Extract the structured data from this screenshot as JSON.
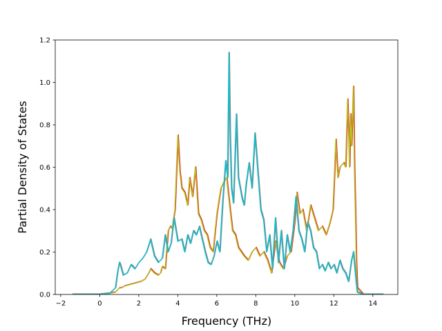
{
  "chart_data": {
    "type": "line",
    "title": "",
    "xlabel": "Frequency (THz)",
    "ylabel": "Partial Density of States",
    "xlim": [
      -2.28,
      15.28
    ],
    "ylim": [
      0.0,
      1.2
    ],
    "xticks": [
      -2,
      0,
      2,
      4,
      6,
      8,
      10,
      12,
      14
    ],
    "yticks": [
      0.0,
      0.2,
      0.4,
      0.6,
      0.8,
      1.0,
      1.2
    ],
    "xtick_labels": [
      "−2",
      "0",
      "2",
      "4",
      "6",
      "8",
      "10",
      "12",
      "14"
    ],
    "ytick_labels": [
      "0.0",
      "0.2",
      "0.4",
      "0.6",
      "0.8",
      "1.0",
      "1.2"
    ],
    "grid": false,
    "legend": "none",
    "colors": {
      "series_a_under": "#d62728",
      "series_a": "#bcbd22",
      "series_b_under": "#7f7f7f",
      "series_b": "#17becf"
    },
    "series": [
      {
        "x": [
          -1.4,
          0.0,
          0.5,
          0.8,
          0.9,
          1.0,
          1.1,
          1.3,
          1.5,
          1.7,
          1.9,
          2.1,
          2.3,
          2.5,
          2.6,
          2.8,
          3.0,
          3.1,
          3.2,
          3.35,
          3.5,
          3.6,
          3.7,
          3.85,
          4.0,
          4.1,
          4.2,
          4.35,
          4.5,
          4.6,
          4.75,
          4.9,
          5.05,
          5.2,
          5.35,
          5.5,
          5.65,
          5.8,
          6.0,
          6.2,
          6.35,
          6.5,
          6.65,
          6.8,
          6.95,
          7.1,
          7.25,
          7.4,
          7.6,
          7.8,
          8.0,
          8.2,
          8.4,
          8.6,
          8.8,
          9.0,
          9.2,
          9.4,
          9.6,
          9.8,
          10.0,
          10.1,
          10.25,
          10.4,
          10.6,
          10.8,
          11.0,
          11.2,
          11.4,
          11.6,
          11.8,
          11.95,
          12.1,
          12.2,
          12.3,
          12.5,
          12.6,
          12.7,
          12.75,
          12.8,
          12.85,
          12.9,
          13.0,
          13.05,
          13.1,
          13.15,
          13.2,
          13.5,
          14.5
        ],
        "y": [
          0.0,
          0.0,
          0.005,
          0.01,
          0.02,
          0.03,
          0.03,
          0.04,
          0.045,
          0.05,
          0.055,
          0.06,
          0.07,
          0.1,
          0.12,
          0.1,
          0.09,
          0.1,
          0.13,
          0.12,
          0.3,
          0.32,
          0.31,
          0.4,
          0.75,
          0.58,
          0.5,
          0.48,
          0.42,
          0.55,
          0.46,
          0.6,
          0.38,
          0.35,
          0.3,
          0.28,
          0.22,
          0.2,
          0.38,
          0.5,
          0.53,
          0.55,
          0.42,
          0.3,
          0.28,
          0.22,
          0.2,
          0.18,
          0.16,
          0.2,
          0.22,
          0.18,
          0.2,
          0.16,
          0.1,
          0.25,
          0.15,
          0.12,
          0.18,
          0.2,
          0.35,
          0.48,
          0.38,
          0.4,
          0.3,
          0.42,
          0.36,
          0.3,
          0.32,
          0.28,
          0.34,
          0.4,
          0.73,
          0.55,
          0.6,
          0.62,
          0.6,
          0.92,
          0.78,
          0.6,
          0.85,
          0.7,
          0.98,
          0.6,
          0.4,
          0.15,
          0.03,
          0.0,
          0.0
        ]
      },
      {
        "x": [
          -1.4,
          0.0,
          0.5,
          0.8,
          0.9,
          1.0,
          1.05,
          1.2,
          1.4,
          1.6,
          1.8,
          2.0,
          2.2,
          2.4,
          2.6,
          2.8,
          3.0,
          3.2,
          3.35,
          3.5,
          3.65,
          3.8,
          4.0,
          4.2,
          4.35,
          4.5,
          4.65,
          4.8,
          4.95,
          5.1,
          5.25,
          5.4,
          5.55,
          5.7,
          5.85,
          6.0,
          6.15,
          6.3,
          6.45,
          6.55,
          6.62,
          6.68,
          6.75,
          6.85,
          7.0,
          7.1,
          7.2,
          7.3,
          7.4,
          7.5,
          7.65,
          7.8,
          7.95,
          8.1,
          8.25,
          8.4,
          8.55,
          8.7,
          8.85,
          9.0,
          9.15,
          9.3,
          9.45,
          9.6,
          9.75,
          9.9,
          10.05,
          10.2,
          10.35,
          10.5,
          10.65,
          10.8,
          10.95,
          11.1,
          11.25,
          11.4,
          11.55,
          11.7,
          11.85,
          12.0,
          12.15,
          12.3,
          12.45,
          12.6,
          12.75,
          12.9,
          13.0,
          13.1,
          13.15,
          13.2,
          13.5,
          14.5
        ],
        "y": [
          0.0,
          0.0,
          0.005,
          0.03,
          0.1,
          0.15,
          0.14,
          0.09,
          0.1,
          0.14,
          0.12,
          0.15,
          0.17,
          0.2,
          0.26,
          0.18,
          0.15,
          0.17,
          0.28,
          0.2,
          0.24,
          0.36,
          0.25,
          0.26,
          0.2,
          0.28,
          0.24,
          0.3,
          0.28,
          0.32,
          0.26,
          0.2,
          0.15,
          0.14,
          0.18,
          0.25,
          0.2,
          0.44,
          0.63,
          0.55,
          1.14,
          0.75,
          0.5,
          0.43,
          0.85,
          0.55,
          0.5,
          0.45,
          0.42,
          0.52,
          0.62,
          0.5,
          0.76,
          0.58,
          0.4,
          0.35,
          0.2,
          0.28,
          0.12,
          0.36,
          0.15,
          0.3,
          0.12,
          0.28,
          0.2,
          0.3,
          0.46,
          0.3,
          0.26,
          0.2,
          0.34,
          0.3,
          0.22,
          0.2,
          0.12,
          0.14,
          0.11,
          0.15,
          0.12,
          0.14,
          0.1,
          0.16,
          0.12,
          0.1,
          0.06,
          0.16,
          0.2,
          0.1,
          0.05,
          0.01,
          0.0,
          0.0
        ]
      }
    ]
  }
}
